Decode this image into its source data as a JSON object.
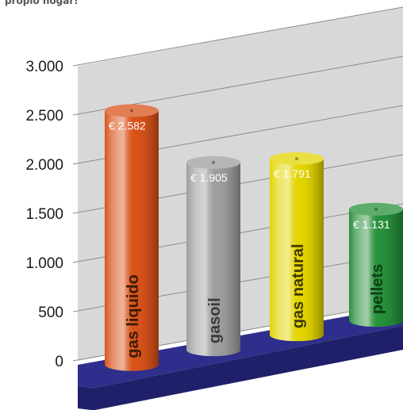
{
  "caption": "propio hogar!",
  "chart_data": {
    "type": "bar",
    "title": "",
    "xlabel": "",
    "ylabel": "",
    "ylim": [
      0,
      3000
    ],
    "y_ticks": [
      {
        "value": 0,
        "label": "0"
      },
      {
        "value": 500,
        "label": "500"
      },
      {
        "value": 1000,
        "label": "1.000"
      },
      {
        "value": 1500,
        "label": "1.500"
      },
      {
        "value": 2000,
        "label": "2.000"
      },
      {
        "value": 2500,
        "label": "2.500"
      },
      {
        "value": 3000,
        "label": "3.000"
      }
    ],
    "categories": [
      "gas liquido",
      "gasoil",
      "gas natural",
      "pellets"
    ],
    "values": [
      2582,
      1905,
      1791,
      1131
    ],
    "data_labels": [
      "€ 2.582",
      "€ 1.905",
      "€ 1.791",
      "€ 1.131"
    ],
    "grid": true,
    "legend": "none",
    "bar_shape": "cylinder",
    "colors": {
      "bars": [
        "#d9531a",
        "#9e9e9e",
        "#e3d400",
        "#27903a"
      ],
      "bar_labels": [
        "#3a1a08",
        "#3b3b3b",
        "#3e3a00",
        "#0f3d18"
      ],
      "floor": "#2e2f8c",
      "wall": "#d8d8d8",
      "grid": "#8c8c8c"
    }
  }
}
